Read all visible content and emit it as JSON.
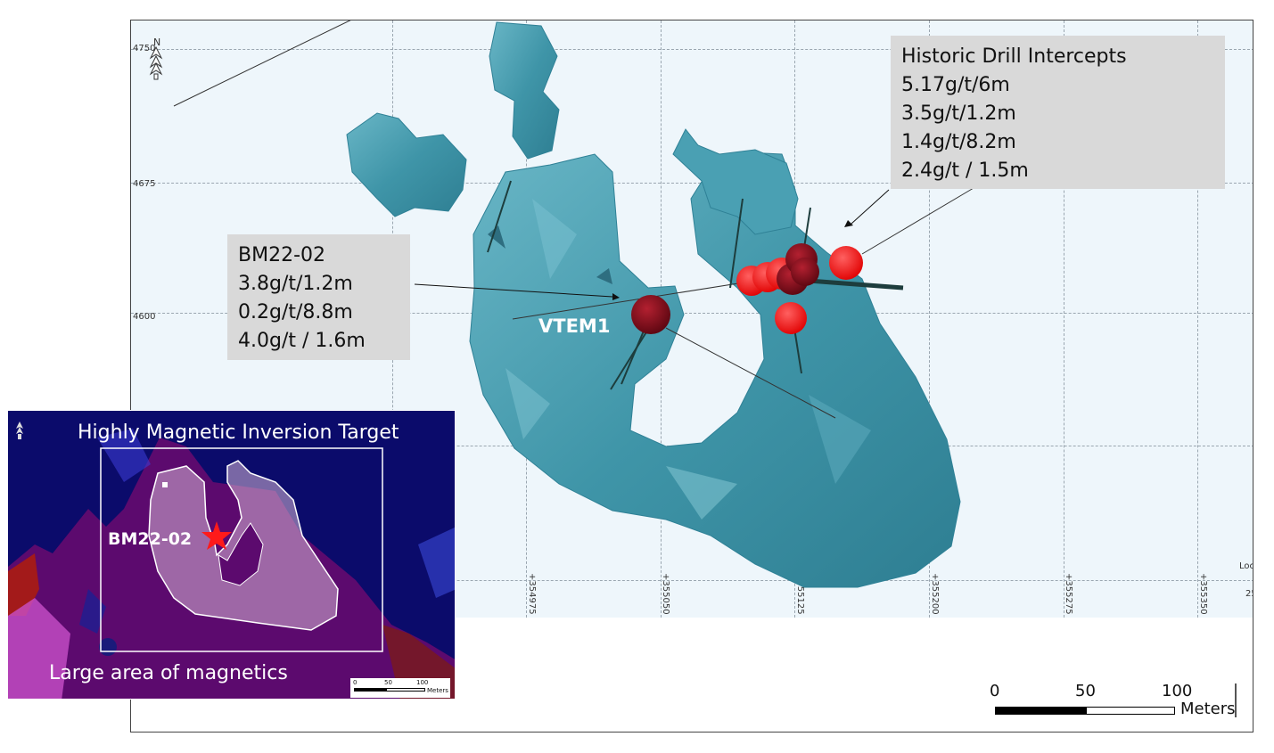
{
  "map": {
    "y_ticks": [
      "4750",
      "4675",
      "4600"
    ],
    "x_ticks": [
      "+354975",
      "+355050",
      "+355125",
      "+355200",
      "+355275",
      "+355350"
    ],
    "corner_fragment": "Loc",
    "corner_scale_fragment": "25",
    "feature_label": "VTEM1"
  },
  "callouts": {
    "historic": {
      "title": "Historic Drill Intercepts",
      "lines": [
        "5.17g/t/6m",
        "3.5g/t/1.2m",
        "1.4g/t/8.2m",
        "2.4g/t / 1.5m"
      ]
    },
    "bm": {
      "title": "BM22-02",
      "lines": [
        "3.8g/t/1.2m",
        "0.2g/t/8.8m",
        "4.0g/t / 1.6m"
      ]
    }
  },
  "scale_bar": {
    "ticks": [
      "0",
      "50",
      "100"
    ],
    "unit": "Meters"
  },
  "inset": {
    "title": "Highly Magnetic Inversion Target",
    "footer": "Large area of magnetics",
    "hole_label": "BM22-02",
    "scale_ticks": [
      "0",
      "50",
      "100"
    ],
    "scale_unit": "Meters"
  },
  "colors": {
    "body": "#3f95a8",
    "intercept": "#ff1a1a",
    "intercept_dark": "#8a0b14",
    "callout_bg": "#d9d9d9"
  }
}
